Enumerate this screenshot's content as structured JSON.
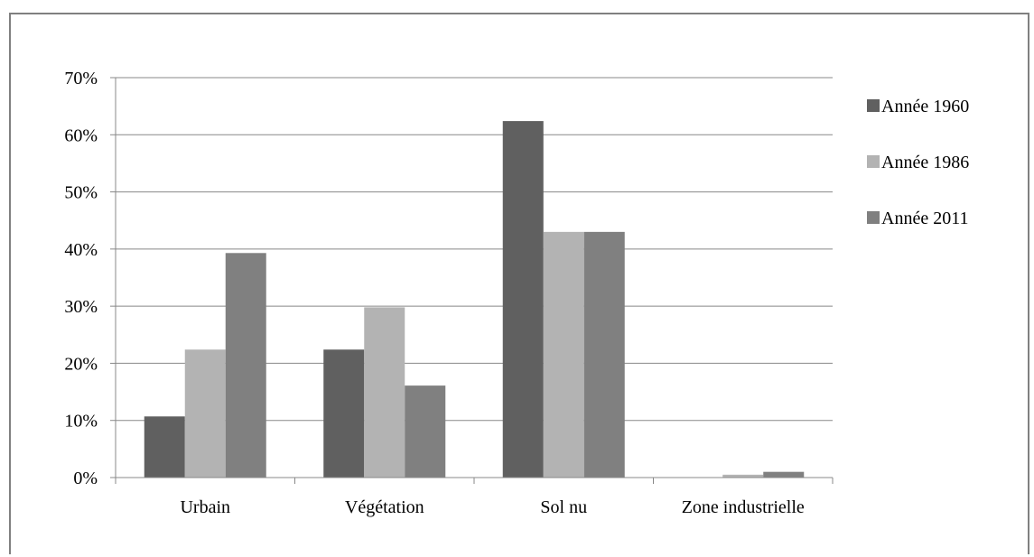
{
  "chart_data": {
    "type": "bar",
    "categories": [
      "Urbain",
      "Végétation",
      "Sol nu",
      "Zone industrielle"
    ],
    "series": [
      {
        "name": "Année 1960",
        "values": [
          10.7,
          22.4,
          62.4,
          0.0
        ]
      },
      {
        "name": "Année 1986",
        "values": [
          22.4,
          29.8,
          43.0,
          0.5
        ]
      },
      {
        "name": "Année 2011",
        "values": [
          39.3,
          16.1,
          43.0,
          1.0
        ]
      }
    ],
    "y_ticks": [
      "0%",
      "10%",
      "20%",
      "30%",
      "40%",
      "50%",
      "60%",
      "70%"
    ],
    "ylim": [
      0,
      70
    ],
    "grid": true,
    "legend_position": "right",
    "colors": [
      "#606060",
      "#b3b3b3",
      "#808080"
    ]
  }
}
